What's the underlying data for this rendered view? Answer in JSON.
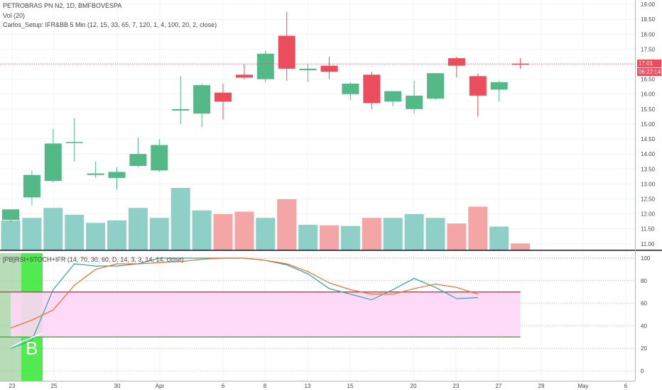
{
  "chart_data": {
    "type": "candlestick",
    "title": "PETROBRAS PN N2, 1D, BMFBOVESPA",
    "volume_label": "Vol (20)",
    "indicator_label": "Carlos_Setup: IFR&BB 5 Min (12, 15, 33, 65, 7, 120, 1, 4, 100, 20, 2, close)",
    "oscillator_label": "[PB]RSI+STOCH+IFR (14, 70, 30, 60, D, 14, 3, 3, 14, 14, close)",
    "price_axis": {
      "ticks": [
        "19.00",
        "18.50",
        "18.00",
        "17.50",
        "17.00",
        "16.50",
        "16.00",
        "15.50",
        "15.00",
        "14.50",
        "14.00",
        "13.50",
        "13.00",
        "12.50",
        "12.00",
        "11.50",
        "11.00"
      ],
      "ylim": [
        10.9,
        19.05
      ]
    },
    "oscillator_axis": {
      "ticks": [
        "100",
        "80",
        "60",
        "40",
        "20",
        "0"
      ],
      "ylim": [
        -2,
        102
      ]
    },
    "date_axis": {
      "ticks": [
        "23",
        "25",
        "30",
        "Apr",
        "6",
        "8",
        "13",
        "15",
        "20",
        "23",
        "27",
        "29",
        "May",
        "6"
      ]
    },
    "last_price": "17.01",
    "countdown": "06:22:14",
    "signal_marker": "B",
    "colors": {
      "up": "#53b987",
      "down": "#eb4d5c",
      "vol_up": "#8ecfc8",
      "vol_down": "#f4a6a6",
      "stoch": "#26a69a",
      "rsi": "#ef6c2c",
      "band_fill": "#ffd6f7",
      "upper_line": "#d04050",
      "lower_line": "#4caf50"
    },
    "candles": [
      {
        "o": 11.8,
        "h": 12.15,
        "l": 11.7,
        "c": 12.15
      },
      {
        "o": 12.55,
        "h": 13.45,
        "l": 12.3,
        "c": 13.3
      },
      {
        "o": 13.1,
        "h": 14.85,
        "l": 13.05,
        "c": 14.35
      },
      {
        "o": 14.4,
        "h": 15.2,
        "l": 13.75,
        "c": 14.4
      },
      {
        "o": 13.3,
        "h": 13.75,
        "l": 13.2,
        "c": 13.35
      },
      {
        "o": 13.2,
        "h": 13.55,
        "l": 12.8,
        "c": 13.4
      },
      {
        "o": 13.6,
        "h": 14.55,
        "l": 13.55,
        "c": 14.0
      },
      {
        "o": 13.45,
        "h": 14.5,
        "l": 13.4,
        "c": 14.3
      },
      {
        "o": 15.45,
        "h": 16.6,
        "l": 15.0,
        "c": 15.5
      },
      {
        "o": 15.35,
        "h": 16.35,
        "l": 14.9,
        "c": 16.3
      },
      {
        "o": 16.05,
        "h": 16.35,
        "l": 15.15,
        "c": 15.75
      },
      {
        "o": 16.65,
        "h": 17.0,
        "l": 16.5,
        "c": 16.55
      },
      {
        "o": 16.5,
        "h": 17.45,
        "l": 16.4,
        "c": 17.35
      },
      {
        "o": 17.95,
        "h": 18.75,
        "l": 16.45,
        "c": 16.85
      },
      {
        "o": 16.8,
        "h": 17.0,
        "l": 16.4,
        "c": 16.85
      },
      {
        "o": 16.95,
        "h": 17.25,
        "l": 16.5,
        "c": 16.75
      },
      {
        "o": 16.0,
        "h": 16.4,
        "l": 15.8,
        "c": 16.35
      },
      {
        "o": 16.65,
        "h": 16.75,
        "l": 15.5,
        "c": 15.7
      },
      {
        "o": 15.75,
        "h": 16.1,
        "l": 15.6,
        "c": 16.1
      },
      {
        "o": 15.5,
        "h": 16.45,
        "l": 15.35,
        "c": 15.95
      },
      {
        "o": 15.85,
        "h": 16.7,
        "l": 15.8,
        "c": 16.7
      },
      {
        "o": 17.2,
        "h": 17.25,
        "l": 16.55,
        "c": 16.95
      },
      {
        "o": 16.6,
        "h": 16.7,
        "l": 15.25,
        "c": 15.95
      },
      {
        "o": 16.15,
        "h": 16.45,
        "l": 15.75,
        "c": 16.4
      },
      {
        "o": 17.02,
        "h": 17.2,
        "l": 16.85,
        "c": 17.01
      }
    ],
    "volume_relative": [
      0.48,
      0.52,
      0.68,
      0.57,
      0.44,
      0.48,
      0.68,
      0.52,
      1.0,
      0.64,
      0.58,
      0.62,
      0.52,
      0.82,
      0.41,
      0.4,
      0.39,
      0.52,
      0.52,
      0.58,
      0.52,
      0.43,
      0.7,
      0.38,
      0.11
    ],
    "oscillator": {
      "upper_level": 70,
      "lower_level": 30,
      "stoch": [
        20,
        27,
        72,
        95,
        93,
        93,
        95,
        100,
        100,
        100,
        100,
        100,
        98,
        94,
        86,
        73,
        68,
        63,
        72,
        82,
        74,
        64,
        65
      ],
      "rsi": [
        38,
        45,
        54,
        76,
        90,
        95,
        95,
        96,
        97,
        99,
        100,
        100,
        98,
        95,
        88,
        78,
        72,
        68,
        68,
        73,
        77,
        74,
        68
      ]
    }
  }
}
